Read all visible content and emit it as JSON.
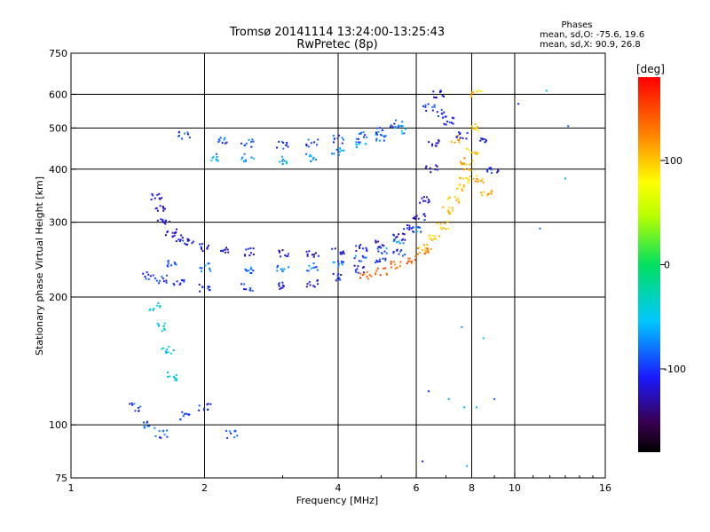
{
  "chart_data": {
    "type": "scatter",
    "title": "Tromsø 20141114 13:24:00-13:25:43",
    "subtitle": "RwPretec (8p)",
    "xlabel": "Frequency [MHz]",
    "ylabel": "Stationary phase Virtual Height [km]",
    "x_scale": "log",
    "y_scale": "log",
    "xlim": [
      1,
      16
    ],
    "ylim": [
      75,
      750
    ],
    "x_ticks": [
      1,
      2,
      4,
      6,
      8,
      10,
      16
    ],
    "y_ticks": [
      75,
      100,
      200,
      300,
      400,
      500,
      600,
      750
    ],
    "x_gridlines": [
      2,
      4,
      6,
      8,
      10
    ],
    "y_gridlines": [
      100,
      200,
      300,
      400,
      500,
      600
    ],
    "grid": true,
    "stats": {
      "heading": "Phases",
      "o_line": "mean, sd,O: -75.6, 19.6",
      "x_line": "mean, sd,X:  90.9, 26.8"
    },
    "colorbar": {
      "label": "[deg]",
      "ticks": [
        -100,
        0,
        100
      ],
      "range": [
        -180,
        180
      ],
      "colormap": "rainbow"
    },
    "series": [
      {
        "trace": "O-F1-lower",
        "phase": -120,
        "points": [
          [
            1.55,
            345
          ],
          [
            1.58,
            322
          ],
          [
            1.62,
            300
          ],
          [
            1.68,
            285
          ],
          [
            1.75,
            275
          ],
          [
            1.85,
            268
          ],
          [
            2.0,
            262
          ],
          [
            2.2,
            256
          ],
          [
            2.5,
            255
          ],
          [
            3.0,
            253
          ],
          [
            3.5,
            253
          ],
          [
            4.0,
            255
          ],
          [
            4.5,
            260
          ],
          [
            5.0,
            266
          ],
          [
            5.5,
            276
          ],
          [
            5.8,
            290
          ],
          [
            6.1,
            310
          ],
          [
            6.3,
            340
          ],
          [
            6.5,
            400
          ],
          [
            6.6,
            460
          ],
          [
            6.7,
            600
          ]
        ]
      },
      {
        "trace": "O-F-low",
        "phase": -110,
        "points": [
          [
            1.5,
            225
          ],
          [
            1.6,
            220
          ],
          [
            1.75,
            215
          ],
          [
            2.0,
            210
          ],
          [
            2.5,
            210
          ],
          [
            3.0,
            212
          ],
          [
            3.5,
            215
          ],
          [
            4.0,
            222
          ],
          [
            4.5,
            232
          ],
          [
            5.0,
            243
          ],
          [
            5.5,
            255
          ]
        ]
      },
      {
        "trace": "O-F-mid",
        "phase": -90,
        "points": [
          [
            1.7,
            240
          ],
          [
            2.0,
            235
          ],
          [
            2.5,
            232
          ],
          [
            3.0,
            232
          ],
          [
            3.5,
            235
          ],
          [
            4.0,
            240
          ],
          [
            4.5,
            247
          ],
          [
            5.0,
            258
          ],
          [
            5.5,
            272
          ],
          [
            6.0,
            290
          ]
        ]
      },
      {
        "trace": "O-F2-echo",
        "phase": -100,
        "points": [
          [
            1.8,
            480
          ],
          [
            2.2,
            465
          ],
          [
            2.5,
            460
          ],
          [
            3.0,
            455
          ],
          [
            3.5,
            460
          ],
          [
            4.0,
            470
          ],
          [
            4.5,
            480
          ],
          [
            5.0,
            492
          ],
          [
            5.4,
            510
          ]
        ]
      },
      {
        "trace": "O-F2-mid",
        "phase": -80,
        "points": [
          [
            2.1,
            425
          ],
          [
            2.5,
            425
          ],
          [
            3.0,
            420
          ],
          [
            3.5,
            425
          ],
          [
            4.0,
            440
          ],
          [
            4.5,
            455
          ],
          [
            5.0,
            475
          ],
          [
            5.5,
            495
          ]
        ]
      },
      {
        "trace": "X-F1",
        "phase": 140,
        "points": [
          [
            4.6,
            225
          ],
          [
            5.0,
            230
          ],
          [
            5.4,
            237
          ],
          [
            5.8,
            245
          ],
          [
            6.2,
            256
          ]
        ]
      },
      {
        "trace": "X-F2-cusp",
        "phase": 100,
        "points": [
          [
            6.3,
            260
          ],
          [
            6.6,
            275
          ],
          [
            6.9,
            295
          ],
          [
            7.1,
            320
          ],
          [
            7.3,
            340
          ],
          [
            7.5,
            360
          ],
          [
            7.7,
            380
          ],
          [
            7.9,
            405
          ],
          [
            8.05,
            440
          ],
          [
            8.1,
            500
          ],
          [
            8.2,
            600
          ]
        ]
      },
      {
        "trace": "O-Es",
        "phase": -60,
        "points": [
          [
            1.55,
            190
          ],
          [
            1.6,
            170
          ],
          [
            1.65,
            150
          ],
          [
            1.7,
            130
          ]
        ]
      },
      {
        "trace": "O-low",
        "phase": -100,
        "points": [
          [
            1.4,
            110
          ],
          [
            1.5,
            100
          ],
          [
            1.6,
            95
          ],
          [
            1.8,
            105
          ],
          [
            2.0,
            110
          ],
          [
            2.3,
            95
          ]
        ]
      },
      {
        "trace": "X-high",
        "phase": 110,
        "points": [
          [
            7.4,
            470
          ],
          [
            7.8,
            420
          ],
          [
            8.3,
            380
          ],
          [
            8.6,
            350
          ]
        ]
      },
      {
        "trace": "O-high",
        "phase": -110,
        "points": [
          [
            6.4,
            560
          ],
          [
            6.8,
            540
          ],
          [
            7.1,
            520
          ],
          [
            7.6,
            480
          ],
          [
            8.4,
            470
          ],
          [
            8.9,
            400
          ]
        ]
      },
      {
        "trace": "scattered-echoes",
        "phase": -90,
        "points": [
          [
            11.8,
            612
          ],
          [
            13.0,
            380
          ],
          [
            11.4,
            290
          ],
          [
            13.2,
            505
          ],
          [
            10.2,
            570
          ],
          [
            6.4,
            120
          ],
          [
            7.1,
            115
          ],
          [
            7.7,
            110
          ],
          [
            7.8,
            80
          ],
          [
            8.2,
            110
          ],
          [
            9.0,
            115
          ],
          [
            6.2,
            82
          ],
          [
            7.6,
            170
          ],
          [
            8.5,
            160
          ]
        ]
      }
    ]
  }
}
